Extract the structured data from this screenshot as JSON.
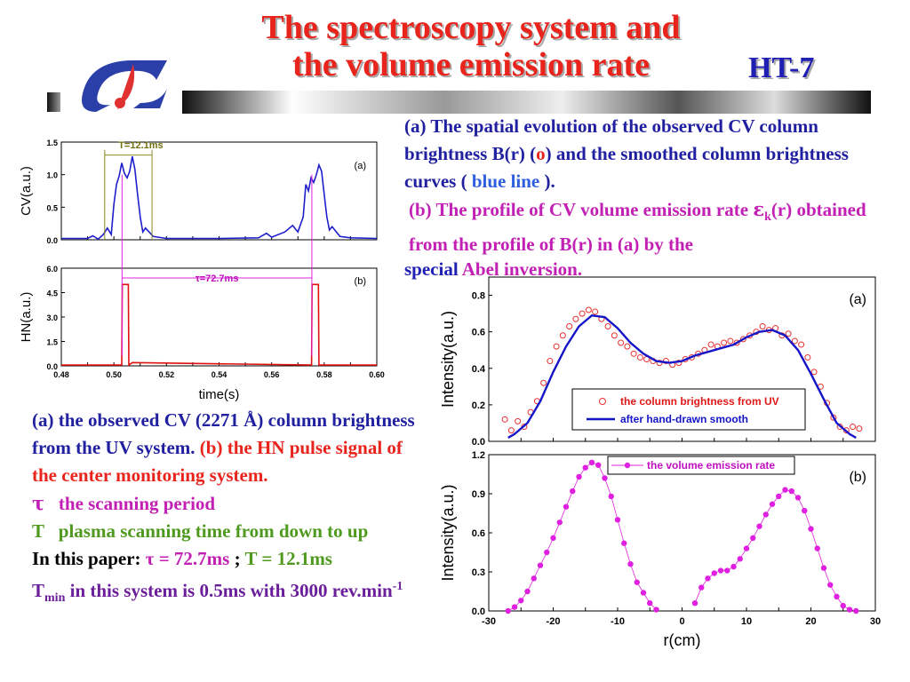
{
  "header": {
    "title_line1": "The spectroscopy system and",
    "title_line2": "the volume emission rate",
    "tag": "HT-7"
  },
  "left_caption": {
    "a_text": "(a) the observed CV (2271 Å) column brightness from the UV system.",
    "b_label": "(b)",
    "b_text_1": "the",
    "b_text_2": "HN pulse signal of the center monitoring system.",
    "tau_symbol": "τ",
    "tau_def": "the scanning period",
    "T_symbol": "T",
    "T_def": "plasma scanning time from down to up",
    "paper_prefix": "In this paper:",
    "paper_tau": "τ = 72.7ms",
    "paper_sep": ";",
    "paper_T": "T = 12.1ms",
    "tmin_T": "T",
    "tmin_sub": "min",
    "tmin_text": "in this system is 0.5ms with 3000 rev.min",
    "tmin_sup": "-1"
  },
  "right_caption": {
    "a_text_1": "(a) The spatial evolution of the observed CV column brightness B(r) (",
    "a_circle": "o",
    "a_text_2": ") and the smoothed column brightness curves (",
    "a_blue": "blue line",
    "a_text_3": ").",
    "b_text_1": "(b) The profile of CV volume emission rate ",
    "b_eps": "ε",
    "b_eps_sub": "k",
    "b_text_2": "(r) obtained from the profile of B(r) in (a) by the",
    "b_special": "special",
    "b_text_3": "Abel inversion."
  },
  "chart_data": [
    {
      "type": "line",
      "panel": "(a)",
      "ylabel": "CV(a.u.)",
      "xlim": [
        0.48,
        0.6
      ],
      "ylim": [
        0.0,
        1.5
      ],
      "yticks": [
        "0.0",
        "0.5",
        "1.0",
        "1.5"
      ],
      "annotation": "T=12.1ms",
      "colors": {
        "line": "#1f1fcc",
        "marker": "#8a8a20"
      },
      "series": [
        {
          "x": [
            0.48,
            0.49,
            0.492,
            0.494,
            0.496,
            0.4975,
            0.499,
            0.5,
            0.501,
            0.502,
            0.503,
            0.504,
            0.505,
            0.506,
            0.507,
            0.508,
            0.509,
            0.51,
            0.511,
            0.512,
            0.515,
            0.52,
            0.54,
            0.555,
            0.558,
            0.56,
            0.565,
            0.568,
            0.57,
            0.572,
            0.573,
            0.574,
            0.575,
            0.576,
            0.577,
            0.578,
            0.579,
            0.58,
            0.581,
            0.582,
            0.583,
            0.586,
            0.59,
            0.6
          ],
          "y": [
            0.02,
            0.02,
            0.06,
            0.01,
            0.08,
            0.18,
            0.08,
            0.55,
            0.85,
            0.98,
            1.18,
            1.02,
            0.95,
            1.05,
            1.28,
            1.08,
            0.7,
            0.35,
            0.12,
            0.18,
            0.05,
            0.02,
            0.02,
            0.03,
            0.1,
            0.04,
            0.12,
            0.22,
            0.12,
            0.35,
            0.85,
            0.75,
            0.95,
            0.88,
            1.0,
            1.15,
            1.05,
            0.7,
            0.35,
            0.15,
            0.2,
            0.05,
            0.03,
            0.02
          ]
        }
      ]
    },
    {
      "type": "line",
      "panel": "(b)",
      "ylabel": "HN(a.u.)",
      "xlabel": "time(s)",
      "xlim": [
        0.48,
        0.6
      ],
      "ylim": [
        0.0,
        6.0
      ],
      "xticks": [
        "0.48",
        "0.50",
        "0.52",
        "0.54",
        "0.56",
        "0.58",
        "0.60"
      ],
      "yticks": [
        "0.0",
        "1.5",
        "3.0",
        "4.5",
        "6.0"
      ],
      "annotation": "τ=72.7ms",
      "colors": {
        "line": "#e01010",
        "marker": "#e020e0"
      },
      "series": [
        {
          "x": [
            0.48,
            0.503,
            0.5032,
            0.5055,
            0.5057,
            0.507,
            0.5752,
            0.5754,
            0.5778,
            0.578,
            0.6
          ],
          "y": [
            0.05,
            0.05,
            5.0,
            5.0,
            0.05,
            0.2,
            0.05,
            5.0,
            5.0,
            0.05,
            0.05
          ]
        }
      ]
    },
    {
      "type": "scatter",
      "panel": "(a)",
      "ylabel": "Intensity(a.u.)",
      "xlim": [
        -30,
        30
      ],
      "ylim": [
        0.0,
        0.9
      ],
      "yticks": [
        "0.0",
        "0.2",
        "0.4",
        "0.6",
        "0.8"
      ],
      "legend_position": "lower-right",
      "colors": {
        "points": "#e83030",
        "smooth": "#1515c8"
      },
      "series": [
        {
          "name": "the column brightness from UV",
          "x": [
            -27.5,
            -26.5,
            -25.5,
            -24.5,
            -23.5,
            -22.5,
            -21.5,
            -20.5,
            -19.5,
            -18.5,
            -17.5,
            -16.5,
            -15.5,
            -14.5,
            -13.5,
            -12.5,
            -11.5,
            -10.5,
            -9.5,
            -8.5,
            -7.5,
            -6.5,
            -5.5,
            -4.5,
            -3.5,
            -2.5,
            -1.5,
            -0.5,
            0.5,
            1.5,
            2.5,
            3.5,
            4.5,
            5.5,
            6.5,
            7.5,
            8.5,
            9.5,
            10.5,
            11.5,
            12.5,
            13.5,
            14.5,
            15.5,
            16.5,
            17.5,
            18.5,
            19.5,
            20.5,
            21.5,
            22.5,
            23.5,
            24.5,
            25.5,
            26.5,
            27.5
          ],
          "y": [
            0.12,
            0.06,
            0.11,
            0.08,
            0.16,
            0.22,
            0.32,
            0.44,
            0.52,
            0.58,
            0.63,
            0.67,
            0.7,
            0.72,
            0.71,
            0.67,
            0.63,
            0.58,
            0.54,
            0.52,
            0.48,
            0.46,
            0.45,
            0.44,
            0.43,
            0.44,
            0.42,
            0.43,
            0.45,
            0.46,
            0.48,
            0.5,
            0.53,
            0.52,
            0.54,
            0.55,
            0.54,
            0.56,
            0.58,
            0.6,
            0.63,
            0.61,
            0.62,
            0.58,
            0.59,
            0.55,
            0.53,
            0.46,
            0.38,
            0.3,
            0.21,
            0.13,
            0.08,
            0.06,
            0.08,
            0.07
          ]
        },
        {
          "name": "after hand-drawn smooth",
          "x": [
            -27,
            -26,
            -24,
            -22,
            -20,
            -18,
            -16,
            -14,
            -12,
            -10,
            -8,
            -6,
            -4,
            -2,
            0,
            2,
            4,
            6,
            8,
            10,
            12,
            14,
            16,
            18,
            20,
            22,
            24,
            26,
            27
          ],
          "y": [
            0.02,
            0.04,
            0.1,
            0.22,
            0.38,
            0.52,
            0.63,
            0.69,
            0.68,
            0.62,
            0.54,
            0.48,
            0.44,
            0.43,
            0.44,
            0.47,
            0.49,
            0.51,
            0.53,
            0.57,
            0.6,
            0.61,
            0.58,
            0.5,
            0.37,
            0.23,
            0.1,
            0.04,
            0.02
          ]
        }
      ]
    },
    {
      "type": "line",
      "panel": "(b)",
      "ylabel": "Intensity(a.u.)",
      "xlabel": "r(cm)",
      "xlim": [
        -30,
        30
      ],
      "ylim": [
        0.0,
        1.2
      ],
      "xticks": [
        "-30",
        "-20",
        "-10",
        "0",
        "10",
        "20",
        "30"
      ],
      "yticks": [
        "0.0",
        "0.3",
        "0.6",
        "0.9",
        "1.2"
      ],
      "legend_position": "top",
      "colors": {
        "line": "#e020e0"
      },
      "series": [
        {
          "name": "the volume emission rate",
          "x": [
            -27,
            -26,
            -25,
            -24,
            -23,
            -22,
            -21,
            -20,
            -19,
            -18,
            -17,
            -16,
            -15,
            -14,
            -13,
            -12,
            -11,
            -10,
            -9,
            -8,
            -7,
            -6,
            -5,
            -4,
            2,
            3,
            4,
            5,
            6,
            7,
            8,
            9,
            10,
            11,
            12,
            13,
            14,
            15,
            16,
            17,
            18,
            19,
            20,
            21,
            22,
            23,
            24,
            25,
            26,
            27
          ],
          "y": [
            0.0,
            0.03,
            0.08,
            0.15,
            0.25,
            0.35,
            0.45,
            0.56,
            0.68,
            0.8,
            0.92,
            1.03,
            1.1,
            1.14,
            1.12,
            1.02,
            0.88,
            0.7,
            0.52,
            0.36,
            0.22,
            0.14,
            0.06,
            0.01,
            0.06,
            0.18,
            0.25,
            0.29,
            0.31,
            0.31,
            0.34,
            0.4,
            0.48,
            0.56,
            0.65,
            0.74,
            0.82,
            0.88,
            0.93,
            0.92,
            0.87,
            0.77,
            0.63,
            0.48,
            0.33,
            0.2,
            0.11,
            0.04,
            0.01,
            0.0
          ]
        }
      ]
    }
  ]
}
